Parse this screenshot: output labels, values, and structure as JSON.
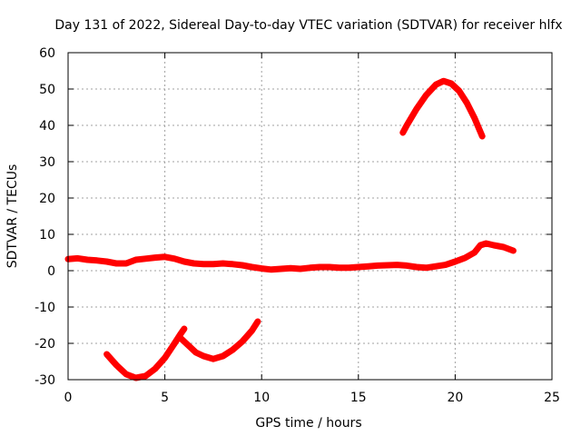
{
  "chart_data": {
    "type": "line",
    "title": "Day 131 of 2022, Sidereal Day-to-day VTEC variation (SDTVAR) for receiver hlfx",
    "xlabel": "GPS time / hours",
    "ylabel": "SDTVAR / TECUs",
    "xlim": [
      0,
      25
    ],
    "ylim": [
      -30,
      60
    ],
    "xticks": [
      0,
      5,
      10,
      15,
      20,
      25
    ],
    "yticks": [
      -30,
      -20,
      -10,
      0,
      10,
      20,
      30,
      40,
      50,
      60
    ],
    "grid": true,
    "legend": "none",
    "series_color": "#ff0000",
    "series": [
      {
        "name": "main-track",
        "points": [
          [
            0.0,
            3.2
          ],
          [
            0.5,
            3.4
          ],
          [
            1.0,
            3.0
          ],
          [
            1.5,
            2.8
          ],
          [
            2.0,
            2.5
          ],
          [
            2.5,
            2.0
          ],
          [
            3.0,
            2.0
          ],
          [
            3.5,
            3.0
          ],
          [
            4.0,
            3.3
          ],
          [
            4.5,
            3.6
          ],
          [
            5.0,
            3.8
          ],
          [
            5.5,
            3.3
          ],
          [
            6.0,
            2.5
          ],
          [
            6.5,
            2.0
          ],
          [
            7.0,
            1.8
          ],
          [
            7.5,
            1.8
          ],
          [
            8.0,
            2.0
          ],
          [
            8.5,
            1.8
          ],
          [
            9.0,
            1.5
          ],
          [
            9.5,
            1.0
          ],
          [
            10.0,
            0.6
          ],
          [
            10.5,
            0.3
          ],
          [
            11.0,
            0.5
          ],
          [
            11.5,
            0.7
          ],
          [
            12.0,
            0.5
          ],
          [
            12.5,
            0.8
          ],
          [
            13.0,
            1.0
          ],
          [
            13.5,
            1.0
          ],
          [
            14.0,
            0.8
          ],
          [
            14.5,
            0.8
          ],
          [
            15.0,
            1.0
          ],
          [
            15.5,
            1.2
          ],
          [
            16.0,
            1.4
          ],
          [
            16.5,
            1.5
          ],
          [
            17.0,
            1.6
          ],
          [
            17.5,
            1.4
          ],
          [
            18.0,
            1.0
          ],
          [
            18.5,
            0.8
          ],
          [
            19.0,
            1.2
          ],
          [
            19.5,
            1.6
          ],
          [
            20.0,
            2.5
          ],
          [
            20.5,
            3.5
          ],
          [
            21.0,
            5.0
          ],
          [
            21.3,
            7.0
          ],
          [
            21.6,
            7.5
          ],
          [
            22.0,
            7.0
          ],
          [
            22.5,
            6.5
          ],
          [
            23.0,
            5.5
          ]
        ]
      },
      {
        "name": "arc-17-to-21.5",
        "points": [
          [
            17.3,
            38.0
          ],
          [
            17.5,
            40.0
          ],
          [
            18.0,
            44.5
          ],
          [
            18.5,
            48.3
          ],
          [
            19.0,
            51.2
          ],
          [
            19.4,
            52.2
          ],
          [
            19.8,
            51.5
          ],
          [
            20.2,
            49.5
          ],
          [
            20.6,
            46.2
          ],
          [
            21.0,
            42.0
          ],
          [
            21.4,
            37.0
          ]
        ]
      },
      {
        "name": "dip-2-to-5.8",
        "points": [
          [
            2.0,
            -23.0
          ],
          [
            2.5,
            -26.0
          ],
          [
            3.0,
            -28.5
          ],
          [
            3.5,
            -29.5
          ],
          [
            4.0,
            -29.0
          ],
          [
            4.5,
            -27.0
          ],
          [
            5.0,
            -24.0
          ],
          [
            5.5,
            -20.0
          ],
          [
            5.8,
            -17.5
          ],
          [
            6.0,
            -16.0
          ]
        ]
      },
      {
        "name": "dip-5.8-to-9.8",
        "points": [
          [
            5.8,
            -18.5
          ],
          [
            6.2,
            -20.5
          ],
          [
            6.6,
            -22.5
          ],
          [
            7.0,
            -23.5
          ],
          [
            7.5,
            -24.3
          ],
          [
            8.0,
            -23.5
          ],
          [
            8.5,
            -21.8
          ],
          [
            9.0,
            -19.5
          ],
          [
            9.5,
            -16.5
          ],
          [
            9.8,
            -14.0
          ]
        ]
      }
    ]
  }
}
